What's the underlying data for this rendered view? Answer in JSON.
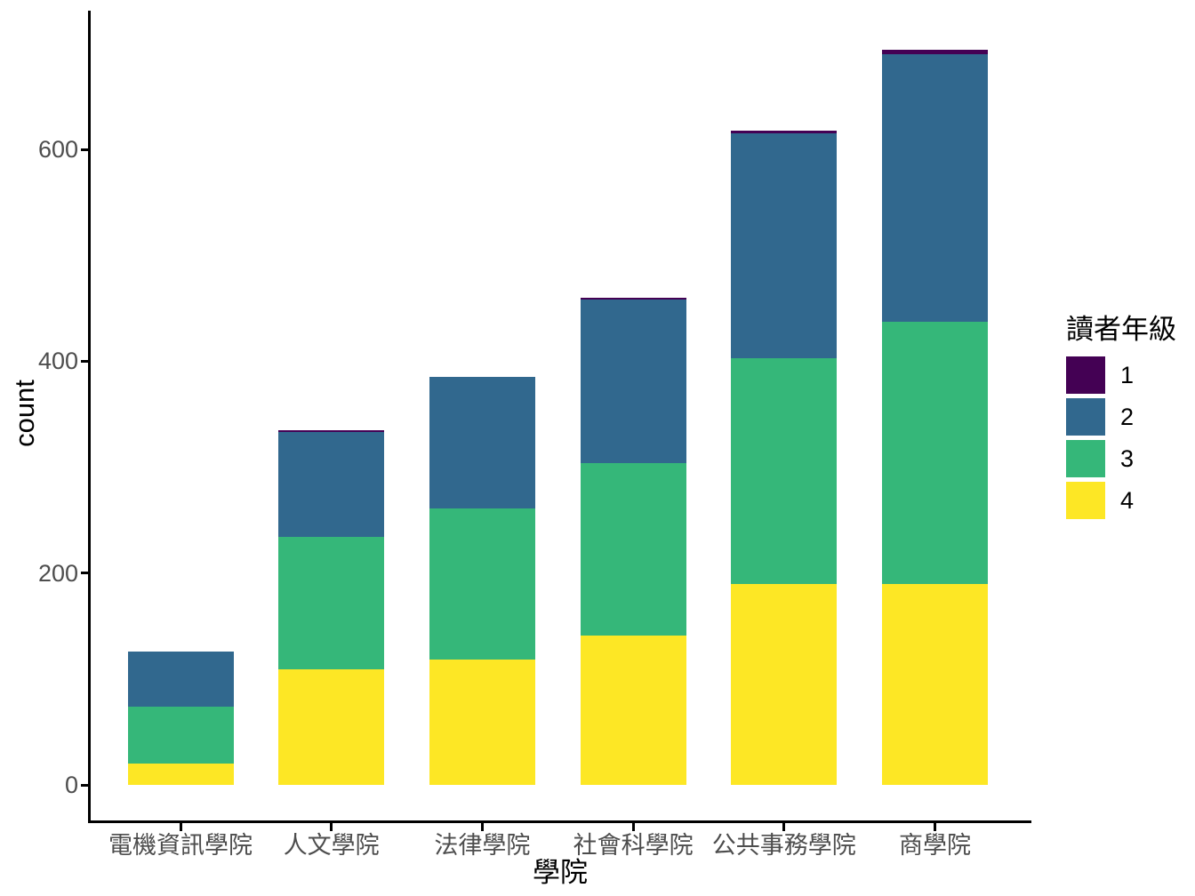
{
  "chart_data": {
    "type": "bar",
    "stacked": true,
    "orientation": "vertical",
    "title": "",
    "xlabel": "學院",
    "ylabel": "count",
    "categories": [
      "電機資訊學院",
      "人文學院",
      "法律學院",
      "社會科學院",
      "公共事務學院",
      "商學院"
    ],
    "series": [
      {
        "name": "1",
        "color": "#440154",
        "values": [
          0,
          2,
          0,
          2,
          3,
          4
        ]
      },
      {
        "name": "2",
        "color": "#31688E",
        "values": [
          52,
          99,
          124,
          154,
          212,
          253
        ]
      },
      {
        "name": "3",
        "color": "#35B779",
        "values": [
          54,
          125,
          143,
          163,
          213,
          247
        ]
      },
      {
        "name": "4",
        "color": "#FDE725",
        "values": [
          20,
          109,
          118,
          141,
          190,
          190
        ]
      }
    ],
    "stack_order_bottom_to_top": [
      "4",
      "3",
      "2",
      "1"
    ],
    "yticks": [
      "0",
      "200",
      "400",
      "600"
    ],
    "ytick_values": [
      0,
      200,
      400,
      600
    ],
    "ylim": [
      0,
      729
    ],
    "grid": false,
    "legend": {
      "title": "讀者年級",
      "position": "right",
      "labels": [
        "1",
        "2",
        "3",
        "4"
      ]
    }
  },
  "style": {
    "background": "#FFFFFF",
    "axis_text_color": "#4D4D4D",
    "axis_line_color": "#000000",
    "bar_colors": {
      "1": "#440154",
      "2": "#31688E",
      "3": "#35B779",
      "4": "#FDE725"
    }
  }
}
